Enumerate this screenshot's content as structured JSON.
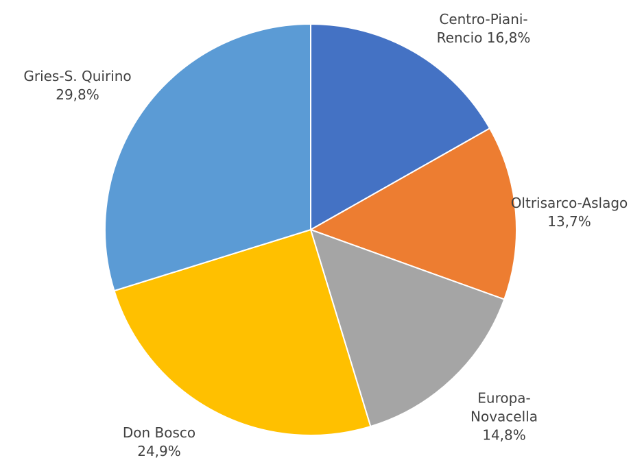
{
  "chart_data": {
    "type": "pie",
    "categories": [
      "Centro-Piani-Rencio",
      "Oltrisarco-Aslago",
      "Europa-Novacella",
      "Don Bosco",
      "Gries-S. Quirino"
    ],
    "values": [
      16.8,
      13.7,
      14.8,
      24.9,
      29.8
    ],
    "value_labels": [
      "16,8%",
      "13,7%",
      "14,8%",
      "24,9%",
      "29,8%"
    ],
    "colors": [
      "#4472c4",
      "#ed7d31",
      "#a5a5a5",
      "#ffc000",
      "#5b9bd5"
    ]
  }
}
